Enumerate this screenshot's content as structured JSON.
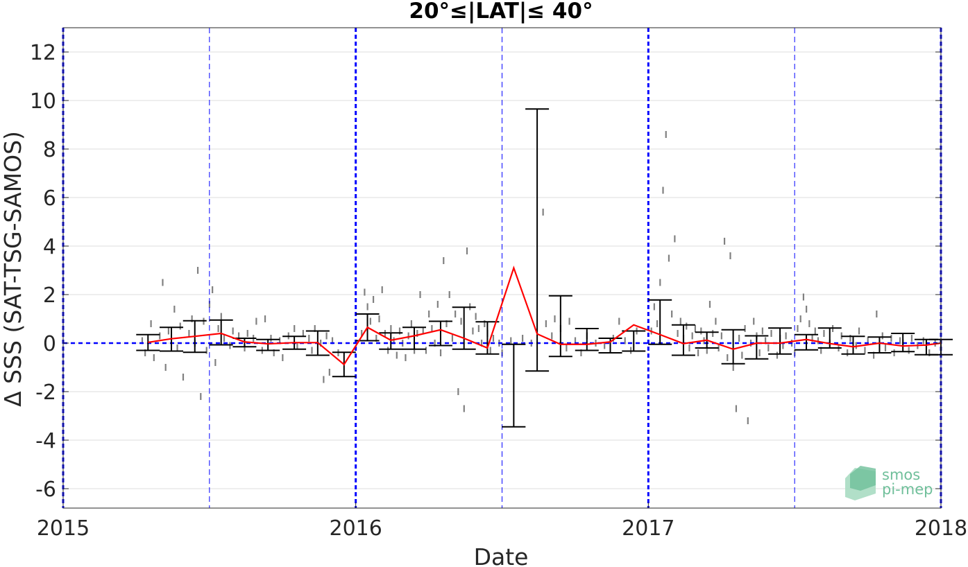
{
  "chart_data": {
    "type": "scatter",
    "title": "20°≤|LAT|≤ 40°",
    "xlabel": "Date",
    "ylabel": "Δ SSS (SAT-TSG-SAMOS)",
    "xlim": [
      2015.0,
      2018.0
    ],
    "ylim": [
      -6.8,
      13.0
    ],
    "x_ticks": [
      2015,
      2016,
      2017,
      2018
    ],
    "x_tick_labels": [
      "2015",
      "2016",
      "2017",
      "2018"
    ],
    "y_ticks": [
      -6,
      -4,
      -2,
      0,
      2,
      4,
      6,
      8,
      10,
      12
    ],
    "y_tick_labels": [
      "-6",
      "-4",
      "-2",
      "0",
      "2",
      "4",
      "6",
      "8",
      "10",
      "12"
    ],
    "grid": true,
    "colors": {
      "scatter": "#808080",
      "mean_line": "#ff0000",
      "error_bars": "#000000",
      "year_lines": "#0000ff",
      "zero_line": "#0000ff"
    },
    "year_lines": [
      2015.0,
      2016.0,
      2017.0,
      2018.0
    ],
    "halfyear_lines": [
      2015.5,
      2016.5,
      2017.5
    ],
    "zero_line": 0,
    "monthly": {
      "x": [
        2015.29,
        2015.37,
        2015.45,
        2015.54,
        2015.62,
        2015.7,
        2015.79,
        2015.87,
        2015.96,
        2016.04,
        2016.12,
        2016.2,
        2016.29,
        2016.37,
        2016.45,
        2016.54,
        2016.62,
        2016.7,
        2016.79,
        2016.87,
        2016.95,
        2017.04,
        2017.12,
        2017.2,
        2017.29,
        2017.37,
        2017.45,
        2017.54,
        2017.62,
        2017.7,
        2017.79,
        2017.87,
        2017.95,
        2018.0
      ],
      "mean": [
        0.03,
        0.18,
        0.28,
        0.4,
        0.05,
        -0.03,
        0.02,
        0.02,
        -0.88,
        0.65,
        0.12,
        0.3,
        0.55,
        0.2,
        -0.2,
        3.1,
        0.38,
        -0.05,
        -0.05,
        0.05,
        0.75,
        0.35,
        -0.02,
        0.12,
        -0.25,
        0.0,
        0.0,
        0.15,
        -0.02,
        -0.15,
        0.0,
        -0.12,
        -0.08,
        0.0
      ],
      "err_low": [
        -0.3,
        -0.33,
        -0.38,
        -0.07,
        -0.15,
        -0.3,
        -0.25,
        -0.5,
        -1.38,
        0.1,
        -0.25,
        -0.25,
        -0.1,
        -0.25,
        -0.45,
        -3.45,
        -1.15,
        -0.55,
        -0.3,
        -0.4,
        -0.33,
        -0.05,
        -0.5,
        -0.2,
        -0.85,
        -0.65,
        -0.45,
        -0.28,
        -0.2,
        -0.45,
        -0.4,
        -0.35,
        -0.48,
        -0.48
      ],
      "err_high": [
        0.35,
        0.65,
        0.92,
        0.95,
        0.2,
        0.15,
        0.28,
        0.5,
        -0.38,
        1.2,
        0.42,
        0.65,
        0.9,
        1.48,
        0.88,
        -0.05,
        9.65,
        1.95,
        0.6,
        0.2,
        0.5,
        1.78,
        0.75,
        0.45,
        0.55,
        0.3,
        0.62,
        0.35,
        0.62,
        0.28,
        0.25,
        0.4,
        0.15,
        0.15
      ]
    },
    "points": [
      [
        2015.27,
        0.1
      ],
      [
        2015.28,
        -0.4
      ],
      [
        2015.3,
        0.8
      ],
      [
        2015.31,
        -0.6
      ],
      [
        2015.33,
        0.3
      ],
      [
        2015.34,
        2.5
      ],
      [
        2015.35,
        -1.0
      ],
      [
        2015.36,
        0.5
      ],
      [
        2015.38,
        1.4
      ],
      [
        2015.39,
        -0.2
      ],
      [
        2015.4,
        0.7
      ],
      [
        2015.41,
        -1.4
      ],
      [
        2015.43,
        0.4
      ],
      [
        2015.44,
        1.0
      ],
      [
        2015.45,
        0.0
      ],
      [
        2015.46,
        3.0
      ],
      [
        2015.47,
        -2.2
      ],
      [
        2015.48,
        0.9
      ],
      [
        2015.49,
        -0.3
      ],
      [
        2015.5,
        1.6
      ],
      [
        2015.51,
        2.2
      ],
      [
        2015.52,
        -0.8
      ],
      [
        2015.53,
        0.6
      ],
      [
        2015.54,
        1.1
      ],
      [
        2015.55,
        0.2
      ],
      [
        2015.57,
        -0.1
      ],
      [
        2015.58,
        0.5
      ],
      [
        2015.6,
        0.3
      ],
      [
        2015.62,
        -0.2
      ],
      [
        2015.63,
        0.4
      ],
      [
        2015.65,
        0.2
      ],
      [
        2015.66,
        0.9
      ],
      [
        2015.68,
        -0.3
      ],
      [
        2015.69,
        1.0
      ],
      [
        2015.71,
        0.2
      ],
      [
        2015.72,
        -0.4
      ],
      [
        2015.74,
        0.1
      ],
      [
        2015.75,
        -0.6
      ],
      [
        2015.77,
        0.3
      ],
      [
        2015.79,
        0.6
      ],
      [
        2015.8,
        -0.1
      ],
      [
        2015.82,
        0.4
      ],
      [
        2015.84,
        0.2
      ],
      [
        2015.85,
        -0.3
      ],
      [
        2015.86,
        0.6
      ],
      [
        2015.88,
        0.0
      ],
      [
        2015.89,
        -1.5
      ],
      [
        2015.9,
        0.3
      ],
      [
        2015.91,
        -1.2
      ],
      [
        2015.92,
        0.1
      ],
      [
        2015.94,
        -0.4
      ],
      [
        2016.02,
        0.4
      ],
      [
        2016.03,
        2.1
      ],
      [
        2016.04,
        1.5
      ],
      [
        2016.05,
        0.9
      ],
      [
        2016.06,
        1.8
      ],
      [
        2016.07,
        0.2
      ],
      [
        2016.08,
        1.0
      ],
      [
        2016.09,
        2.2
      ],
      [
        2016.1,
        0.4
      ],
      [
        2016.11,
        -0.3
      ],
      [
        2016.12,
        0.6
      ],
      [
        2016.13,
        0.1
      ],
      [
        2016.14,
        -0.5
      ],
      [
        2016.15,
        0.5
      ],
      [
        2016.16,
        0.0
      ],
      [
        2016.17,
        -0.6
      ],
      [
        2016.18,
        0.3
      ],
      [
        2016.19,
        0.8
      ],
      [
        2016.2,
        -0.3
      ],
      [
        2016.21,
        0.4
      ],
      [
        2016.22,
        2.0
      ],
      [
        2016.23,
        0.5
      ],
      [
        2016.24,
        -0.3
      ],
      [
        2016.25,
        1.2
      ],
      [
        2016.26,
        0.6
      ],
      [
        2016.27,
        0.0
      ],
      [
        2016.28,
        1.6
      ],
      [
        2016.29,
        -0.4
      ],
      [
        2016.3,
        3.4
      ],
      [
        2016.31,
        0.8
      ],
      [
        2016.32,
        2.0
      ],
      [
        2016.33,
        0.2
      ],
      [
        2016.34,
        1.2
      ],
      [
        2016.35,
        -2.0
      ],
      [
        2016.36,
        0.9
      ],
      [
        2016.37,
        -2.7
      ],
      [
        2016.38,
        3.8
      ],
      [
        2016.39,
        1.5
      ],
      [
        2016.4,
        0.5
      ],
      [
        2016.41,
        1.1
      ],
      [
        2016.42,
        0.6
      ],
      [
        2016.43,
        0.0
      ],
      [
        2016.44,
        0.8
      ],
      [
        2016.45,
        0.4
      ],
      [
        2016.46,
        -0.3
      ],
      [
        2016.47,
        0.2
      ],
      [
        2016.49,
        0.0
      ],
      [
        2016.5,
        -0.4
      ],
      [
        2016.53,
        0.1
      ],
      [
        2016.57,
        0.2
      ],
      [
        2016.6,
        0.0
      ],
      [
        2016.64,
        5.4
      ],
      [
        2016.65,
        0.8
      ],
      [
        2016.67,
        0.3
      ],
      [
        2016.68,
        1.0
      ],
      [
        2016.7,
        0.6
      ],
      [
        2016.72,
        -0.2
      ],
      [
        2016.73,
        0.9
      ],
      [
        2016.75,
        0.1
      ],
      [
        2016.77,
        -0.4
      ],
      [
        2016.79,
        0.3
      ],
      [
        2016.82,
        0.0
      ],
      [
        2016.85,
        -0.1
      ],
      [
        2016.88,
        0.2
      ],
      [
        2016.9,
        0.9
      ],
      [
        2016.92,
        0.1
      ],
      [
        2016.94,
        -0.3
      ],
      [
        2016.96,
        0.5
      ],
      [
        2017.01,
        0.5
      ],
      [
        2017.02,
        1.5
      ],
      [
        2017.03,
        0.8
      ],
      [
        2017.04,
        2.5
      ],
      [
        2017.05,
        6.3
      ],
      [
        2017.06,
        8.6
      ],
      [
        2017.07,
        3.5
      ],
      [
        2017.08,
        1.2
      ],
      [
        2017.09,
        4.3
      ],
      [
        2017.1,
        0.4
      ],
      [
        2017.11,
        0.9
      ],
      [
        2017.12,
        0.2
      ],
      [
        2017.13,
        0.7
      ],
      [
        2017.14,
        -0.2
      ],
      [
        2017.15,
        0.3
      ],
      [
        2017.16,
        0.6
      ],
      [
        2017.17,
        -0.4
      ],
      [
        2017.18,
        0.5
      ],
      [
        2017.19,
        0.1
      ],
      [
        2017.2,
        -0.3
      ],
      [
        2017.21,
        1.6
      ],
      [
        2017.22,
        0.4
      ],
      [
        2017.23,
        0.9
      ],
      [
        2017.24,
        -0.2
      ],
      [
        2017.25,
        0.3
      ],
      [
        2017.26,
        4.2
      ],
      [
        2017.27,
        -0.6
      ],
      [
        2017.28,
        3.6
      ],
      [
        2017.29,
        -1.0
      ],
      [
        2017.3,
        -2.7
      ],
      [
        2017.31,
        0.2
      ],
      [
        2017.32,
        -0.5
      ],
      [
        2017.33,
        0.6
      ],
      [
        2017.34,
        -3.2
      ],
      [
        2017.35,
        0.0
      ],
      [
        2017.36,
        0.9
      ],
      [
        2017.37,
        0.3
      ],
      [
        2017.38,
        -0.4
      ],
      [
        2017.39,
        0.5
      ],
      [
        2017.4,
        0.1
      ],
      [
        2017.41,
        -0.2
      ],
      [
        2017.42,
        0.4
      ],
      [
        2017.44,
        -0.5
      ],
      [
        2017.45,
        0.2
      ],
      [
        2017.46,
        -0.1
      ],
      [
        2017.47,
        0.3
      ],
      [
        2017.49,
        0.0
      ],
      [
        2017.5,
        -0.4
      ],
      [
        2017.51,
        0.6
      ],
      [
        2017.52,
        1.0
      ],
      [
        2017.53,
        1.9
      ],
      [
        2017.54,
        1.4
      ],
      [
        2017.55,
        0.8
      ],
      [
        2017.56,
        0.2
      ],
      [
        2017.57,
        0.5
      ],
      [
        2017.58,
        0.1
      ],
      [
        2017.59,
        -0.3
      ],
      [
        2017.6,
        0.4
      ],
      [
        2017.62,
        0.0
      ],
      [
        2017.63,
        0.6
      ],
      [
        2017.65,
        -0.2
      ],
      [
        2017.66,
        0.3
      ],
      [
        2017.68,
        -0.4
      ],
      [
        2017.69,
        0.2
      ],
      [
        2017.71,
        -0.1
      ],
      [
        2017.72,
        0.5
      ],
      [
        2017.74,
        -0.3
      ],
      [
        2017.75,
        0.1
      ],
      [
        2017.77,
        -0.5
      ],
      [
        2017.78,
        1.2
      ],
      [
        2017.8,
        0.3
      ],
      [
        2017.81,
        -0.2
      ],
      [
        2017.83,
        0.2
      ],
      [
        2017.84,
        -0.4
      ],
      [
        2017.86,
        0.1
      ],
      [
        2017.87,
        0.0
      ],
      [
        2017.89,
        -0.3
      ],
      [
        2017.9,
        0.2
      ],
      [
        2017.92,
        -0.1
      ],
      [
        2017.94,
        0.1
      ],
      [
        2017.96,
        -0.4
      ],
      [
        2017.98,
        0.0
      ]
    ],
    "logo_text": [
      "smos",
      "pi-mep"
    ]
  }
}
